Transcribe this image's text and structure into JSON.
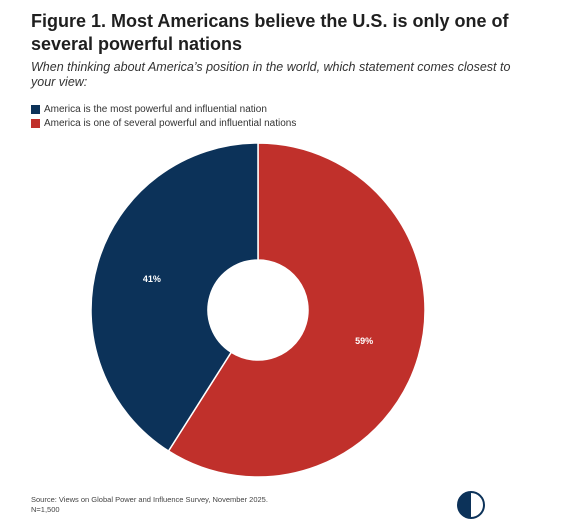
{
  "title": "Figure 1. Most Americans believe the U.S. is only one of several powerful nations",
  "subtitle": "When thinking about America’s position in the world, which statement comes closest to your view:",
  "source": {
    "line1": "Source: Views on Global Power and Influence Survey, November 2025.",
    "line2": "N=1,500"
  },
  "colors": {
    "navy": "#0c3259",
    "red": "#c0302b",
    "logo": "#0c3259"
  },
  "logo_icon": "half-circle-logo-icon",
  "chart_data": {
    "type": "pie",
    "donut": true,
    "title": "Figure 1. Most Americans believe the U.S. is only one of several powerful nations",
    "legend_position": "top-left",
    "categories": [
      "America is the most powerful and influential nation",
      "America is one of several powerful and influential nations"
    ],
    "values": [
      41,
      59
    ],
    "labels": [
      "41%",
      "59%"
    ],
    "colors": [
      "#0c3259",
      "#c0302b"
    ]
  }
}
